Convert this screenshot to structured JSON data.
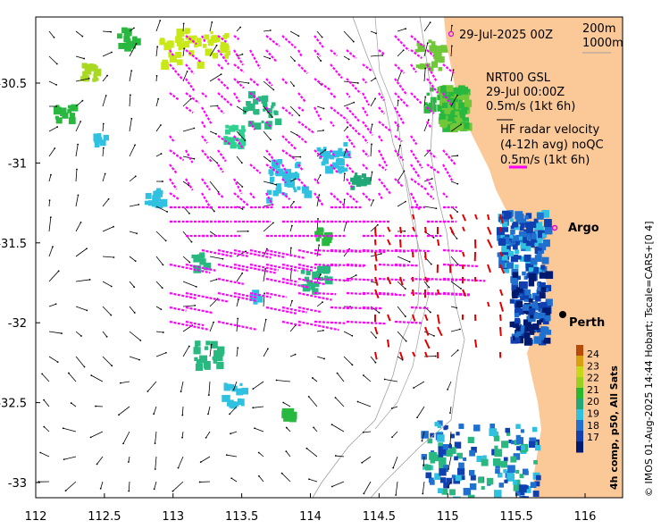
{
  "map": {
    "title_date": "29-Jul-2025 00Z",
    "depth_labels": [
      "200m",
      "1000m"
    ],
    "gsl_label": "NRT00 GSL",
    "gsl_time": "29-Jul 00:00Z",
    "gsl_scale": "0.5m/s (1kt 6h)",
    "hf_title": "HF radar velocity",
    "hf_avg": "(4-12h avg) noQC",
    "hf_scale": "0.5m/s (1kt 6h)",
    "x_ticks": [
      "112",
      "112.5",
      "113",
      "113.5",
      "114",
      "114.5",
      "115",
      "115.5",
      "116"
    ],
    "y_ticks": [
      "-30.5",
      "-31",
      "-31.5",
      "-32",
      "-32.5",
      "-33"
    ],
    "places": [
      {
        "name": "Argo",
        "lon": 115.82,
        "lat": -31.43,
        "marker": "circle-open",
        "color": "#e000e0"
      },
      {
        "name": "Perth",
        "lon": 115.86,
        "lat": -31.95,
        "marker": "dot",
        "color": "#000000"
      }
    ],
    "colorbar": {
      "label": "4h comp, p50, All Sats",
      "ticks": [
        "24",
        "23",
        "22",
        "21",
        "20",
        "19",
        "18",
        "17"
      ],
      "colors": [
        "#b84a0a",
        "#d8a010",
        "#c8d818",
        "#9ad020",
        "#28b830",
        "#20a878",
        "#30c0e0",
        "#2070d0",
        "#1040b0",
        "#001a70"
      ]
    },
    "side_text": "© IMOS 01-Aug-2025 14:44 Hobart; Tscale=CARS+[0 4]",
    "colors": {
      "land": "#fbc898",
      "gsl_vectors": "#ff00ff",
      "hf_vectors": "#e00000",
      "model_vectors": "#000000",
      "isobath": "#a0a0a0"
    }
  }
}
